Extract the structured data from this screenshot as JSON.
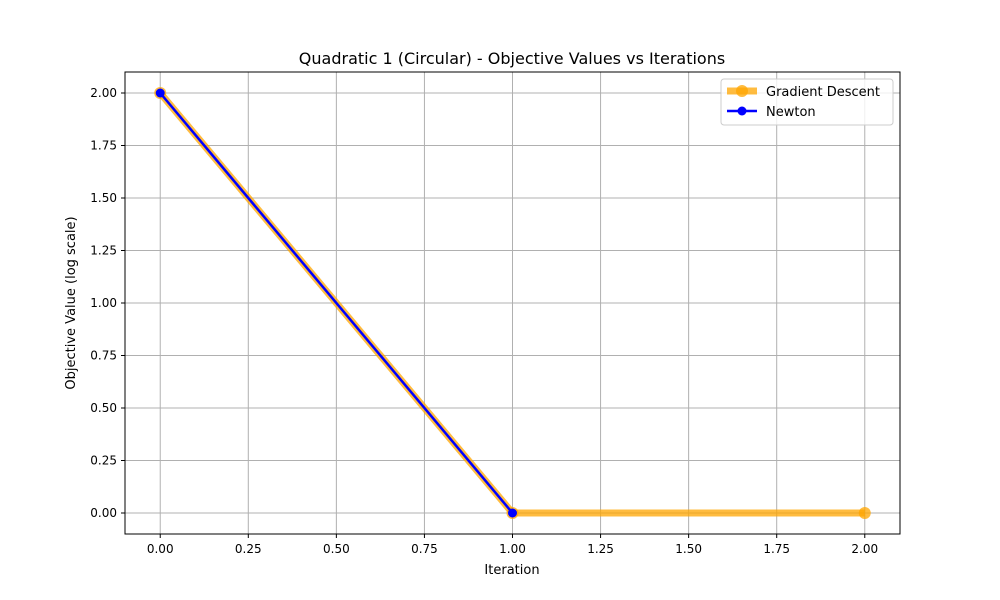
{
  "chart_data": {
    "type": "line",
    "title": "Quadratic 1 (Circular) - Objective Values vs Iterations",
    "xlabel": "Iteration",
    "ylabel": "Objective Value (log scale)",
    "xlim": [
      -0.1,
      2.1
    ],
    "ylim": [
      -0.1,
      2.1
    ],
    "xticks": [
      0.0,
      0.25,
      0.5,
      0.75,
      1.0,
      1.25,
      1.5,
      1.75,
      2.0
    ],
    "xtick_labels": [
      "0.00",
      "0.25",
      "0.50",
      "0.75",
      "1.00",
      "1.25",
      "1.50",
      "1.75",
      "2.00"
    ],
    "yticks": [
      0.0,
      0.25,
      0.5,
      0.75,
      1.0,
      1.25,
      1.5,
      1.75,
      2.0
    ],
    "ytick_labels": [
      "0.00",
      "0.25",
      "0.50",
      "0.75",
      "1.00",
      "1.25",
      "1.50",
      "1.75",
      "2.00"
    ],
    "grid": true,
    "legend_position": "top-right",
    "series": [
      {
        "name": "Gradient Descent",
        "x": [
          0,
          1,
          2
        ],
        "y": [
          2.0,
          0.0,
          0.0
        ],
        "color": "#ffa500",
        "marker": "circle",
        "style": "thick-translucent"
      },
      {
        "name": "Newton",
        "x": [
          0,
          1
        ],
        "y": [
          2.0,
          0.0
        ],
        "color": "#0000ff",
        "marker": "circle",
        "style": "solid"
      }
    ]
  }
}
